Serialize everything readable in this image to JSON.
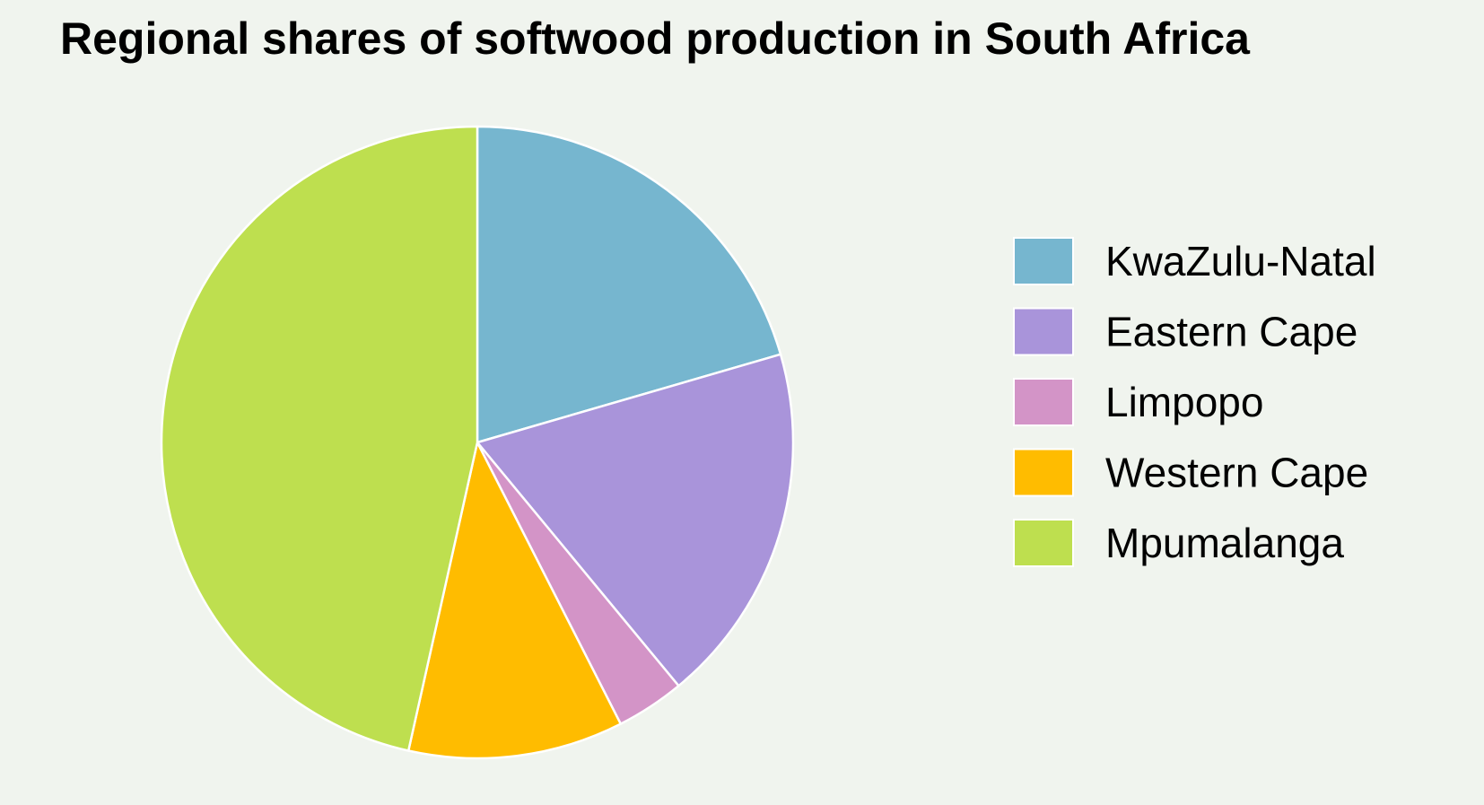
{
  "chart_data": {
    "type": "pie",
    "title": "Regional shares of softwood production in South Africa",
    "start_angle_deg": 0,
    "direction": "clockwise",
    "legend_position": "right",
    "slice_border_color": "#ffffff",
    "slices": [
      {
        "label": "KwaZulu-Natal",
        "value": 20.5,
        "color": "#76b6cf"
      },
      {
        "label": "Eastern Cape",
        "value": 18.5,
        "color": "#a994da"
      },
      {
        "label": "Limpopo",
        "value": 3.5,
        "color": "#d394c7"
      },
      {
        "label": "Western Cape",
        "value": 11.0,
        "color": "#ffbc00"
      },
      {
        "label": "Mpumalanga",
        "value": 46.5,
        "color": "#bedf4f"
      }
    ]
  }
}
